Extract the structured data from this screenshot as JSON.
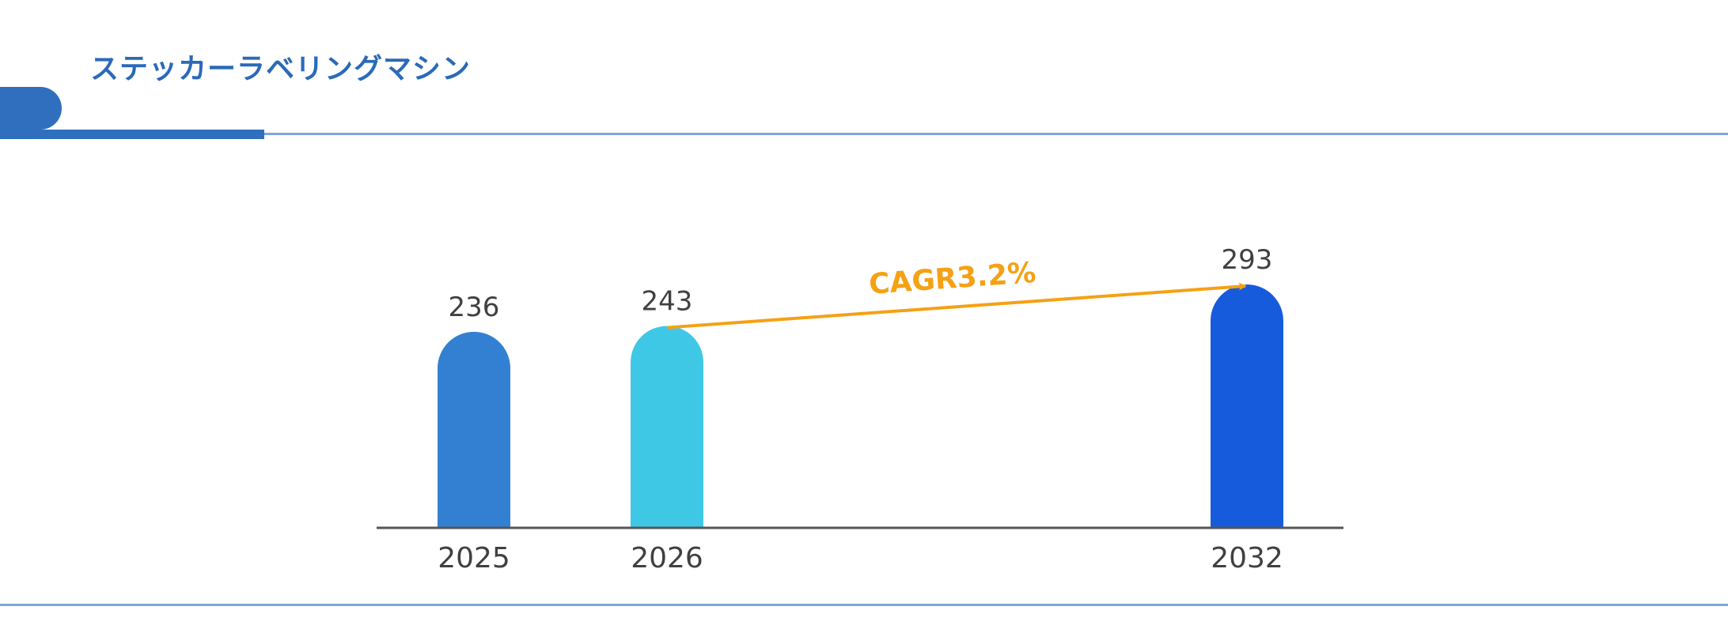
{
  "header": {
    "title": "ステッカーラベリングマシン"
  },
  "chart_data": {
    "type": "bar",
    "title": "",
    "categories": [
      "2025",
      "2026",
      "2032"
    ],
    "values": [
      236,
      243,
      293
    ],
    "bar_colors": [
      "#3380d2",
      "#3ec8e6",
      "#175bdd"
    ],
    "xlabel": "",
    "ylabel": "",
    "grid": false,
    "legend": "none",
    "annotation": {
      "text": "CAGR3.2%",
      "from_category": "2026",
      "to_category": "2032",
      "color": "#f5a114"
    }
  },
  "colors": {
    "accent": "#2f6fbd",
    "title": "#2a6ab8",
    "rule": "#7ea6d8",
    "axis": "#555555"
  }
}
